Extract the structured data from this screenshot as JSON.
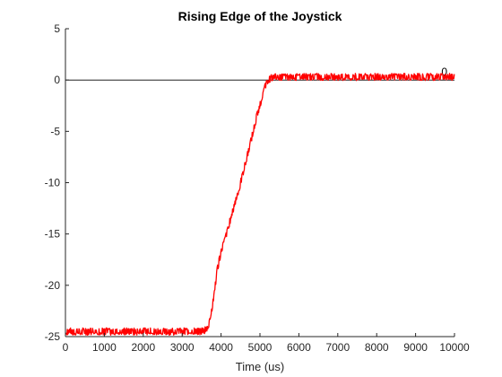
{
  "chart_data": {
    "type": "line",
    "title": "Rising Edge of the Joystick",
    "xlabel": "Time (us)",
    "ylabel": "",
    "xlim": [
      0,
      10000
    ],
    "ylim": [
      -25,
      5
    ],
    "xticks": [
      0,
      1000,
      2000,
      3000,
      4000,
      5000,
      6000,
      7000,
      8000,
      9000,
      10000
    ],
    "yticks": [
      5,
      0,
      -5,
      -10,
      -15,
      -20,
      -25
    ],
    "grid": false,
    "reference_line": {
      "y": 0,
      "label": "0",
      "color": "#000000"
    },
    "series": [
      {
        "color": "#ff0000",
        "noise_amplitude": 0.35,
        "x": [
          0,
          3550,
          3650,
          3700,
          3800,
          3900,
          4000,
          4100,
          4300,
          4500,
          4700,
          4900,
          5100,
          5200,
          5300,
          5400,
          6000,
          7000,
          8000,
          9000,
          10000
        ],
        "values": [
          -24.5,
          -24.5,
          -24.1,
          -23.6,
          -21.5,
          -18.5,
          -16.8,
          -15.5,
          -12.8,
          -10.0,
          -7.0,
          -3.8,
          -1.0,
          0.0,
          0.2,
          0.3,
          0.3,
          0.3,
          0.3,
          0.3,
          0.3
        ]
      }
    ]
  }
}
